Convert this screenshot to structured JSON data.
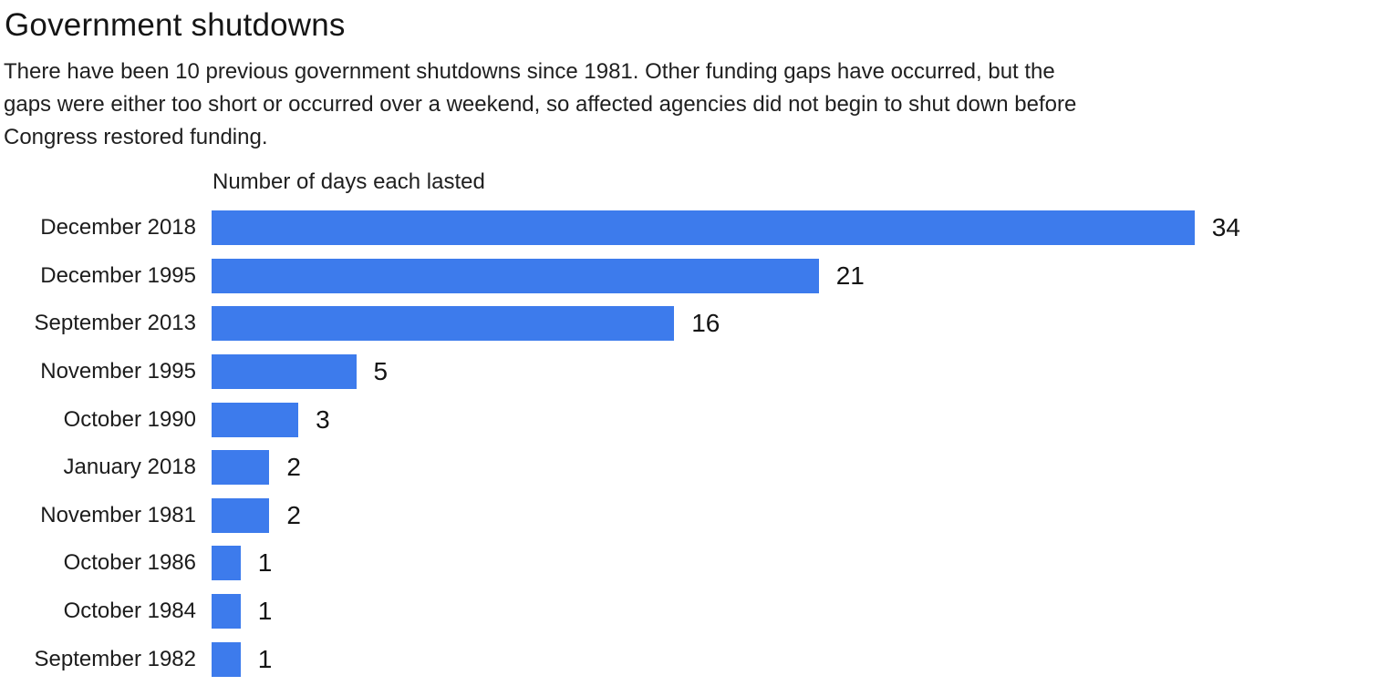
{
  "chart_data": {
    "type": "bar",
    "orientation": "horizontal",
    "title": "Government shutdowns",
    "subtitle": "There have been 10 previous government shutdowns since 1981. Other funding gaps have occurred, but the gaps were either too short or occurred over a weekend, so affected agencies did not begin to shut down before Congress restored funding.",
    "subtitle_lines": [
      "There have been 10 previous government shutdowns since 1981. Other funding gaps have occurred, but the",
      "gaps were either too short or occurred over a weekend, so affected agencies did not begin to shut down before",
      "Congress restored funding."
    ],
    "axis_title": "Number of days each lasted",
    "xlabel": "Number of days each lasted",
    "ylabel": "",
    "categories": [
      "December 2018",
      "December 1995",
      "September 2013",
      "November 1995",
      "October 1990",
      "January 2018",
      "November 1981",
      "October 1986",
      "October 1984",
      "September 1982"
    ],
    "values": [
      34,
      21,
      16,
      5,
      3,
      2,
      2,
      1,
      1,
      1
    ],
    "xlim": [
      0,
      34
    ],
    "grid": false,
    "legend": false,
    "bar_color": "#3d7bec",
    "data_labels_shown": true
  }
}
